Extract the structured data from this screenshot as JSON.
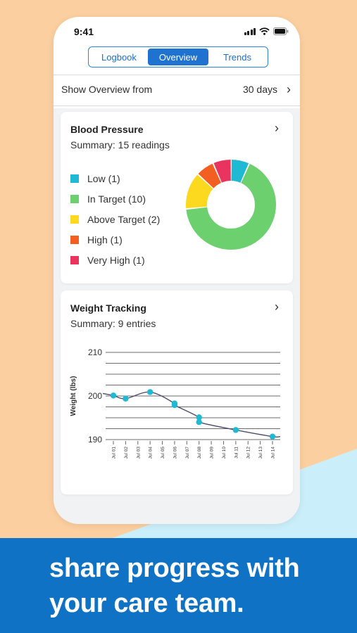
{
  "status_bar": {
    "time": "9:41"
  },
  "tabs": [
    {
      "label": "Logbook",
      "active": false
    },
    {
      "label": "Overview",
      "active": true
    },
    {
      "label": "Trends",
      "active": false
    }
  ],
  "overview": {
    "label": "Show Overview from",
    "value": "30 days"
  },
  "blood_pressure": {
    "title": "Blood Pressure",
    "summary": "Summary: 15 readings",
    "legend": [
      {
        "label": "Low (1)",
        "count": 1,
        "color": "#1fb9d3"
      },
      {
        "label": "In Target (10)",
        "count": 10,
        "color": "#6cd06e"
      },
      {
        "label": "Above Target (2)",
        "count": 2,
        "color": "#fcd91f"
      },
      {
        "label": "High (1)",
        "count": 1,
        "color": "#f25f21"
      },
      {
        "label": "Very High (1)",
        "count": 1,
        "color": "#e8345f"
      }
    ]
  },
  "weight": {
    "title": "Weight Tracking",
    "summary": "Summary: 9 entries"
  },
  "chart_data": {
    "type": "line",
    "title": "Weight Tracking",
    "ylabel": "Weight (lbs)",
    "xlabel": "",
    "ylim": [
      190,
      210
    ],
    "yticks": [
      190,
      200,
      210
    ],
    "categories": [
      "Jul 01",
      "Jul 02",
      "Jul 03",
      "Jul 04",
      "Jul 05",
      "Jul 06",
      "Jul 07",
      "Jul 08",
      "Jul 09",
      "Jul 10",
      "Jul 11",
      "Jul 12",
      "Jul 13",
      "Jul 14"
    ],
    "points": [
      {
        "x": "Jul 01",
        "y": 200.1
      },
      {
        "x": "Jul 02",
        "y": 199.4
      },
      {
        "x": "Jul 04",
        "y": 200.9
      },
      {
        "x": "Jul 06",
        "y": 198.3
      },
      {
        "x": "Jul 06",
        "y": 197.9
      },
      {
        "x": "Jul 08",
        "y": 195.1
      },
      {
        "x": "Jul 08",
        "y": 194.0
      },
      {
        "x": "Jul 11",
        "y": 192.2
      },
      {
        "x": "Jul 14",
        "y": 190.7
      }
    ],
    "grid": true,
    "colors": {
      "points": "#1fb9d3",
      "line": "#4c4d6e",
      "grid": "#6b6b6b"
    }
  },
  "tagline": {
    "line1": "share progress with",
    "line2": "your care team."
  },
  "colors": {
    "accent": "#1f72cf",
    "banner": "#0f72c5",
    "peach": "#fbcf9f",
    "light_blue": "#cbeffa"
  }
}
